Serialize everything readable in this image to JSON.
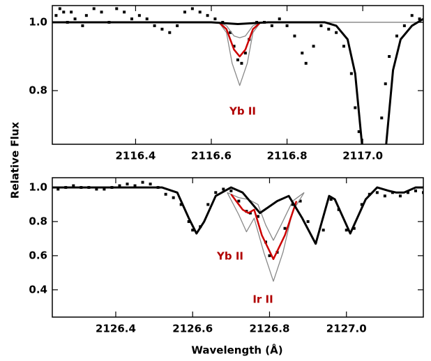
{
  "chart_data": [
    {
      "type": "line",
      "ylabel": "Relative Flux",
      "xlim": [
        2116.18,
        2117.16
      ],
      "ylim": [
        0.643,
        1.049
      ],
      "xticks": [
        2116.4,
        2116.6,
        2116.8,
        {
          "value": 2117,
          "label": "2117.0"
        }
      ],
      "yticks": [
        0.8,
        {
          "value": 1,
          "label": "1.0"
        }
      ],
      "annotations": [
        {
          "text": "Yb II",
          "color": "#b00000"
        }
      ],
      "series": [
        {
          "kind": "points",
          "color": "#000000",
          "x": [
            2116.19,
            2116.2,
            2116.21,
            2116.22,
            2116.23,
            2116.24,
            2116.26,
            2116.27,
            2116.29,
            2116.31,
            2116.33,
            2116.35,
            2116.37,
            2116.39,
            2116.41,
            2116.43,
            2116.45,
            2116.47,
            2116.49,
            2116.51,
            2116.53,
            2116.55,
            2116.57,
            2116.59,
            2116.61,
            2116.63,
            2116.65,
            2116.66,
            2116.67,
            2116.68,
            2116.69,
            2116.7,
            2116.72,
            2116.74,
            2116.76,
            2116.78,
            2116.8,
            2116.82,
            2116.84,
            2116.85,
            2116.87,
            2116.89,
            2116.91,
            2116.93,
            2116.95,
            2116.97,
            2116.98,
            2116.99,
            2117.05,
            2117.06,
            2117.07,
            2117.09,
            2117.11,
            2117.13,
            2117.15
          ],
          "values": [
            1.02,
            1.04,
            1.03,
            1.0,
            1.03,
            1.01,
            0.99,
            1.02,
            1.04,
            1.03,
            1.0,
            1.04,
            1.03,
            1.01,
            1.02,
            1.01,
            0.99,
            0.98,
            0.97,
            0.99,
            1.03,
            1.04,
            1.03,
            1.02,
            1.01,
            1.0,
            0.97,
            0.93,
            0.89,
            0.88,
            0.91,
            0.95,
            1.0,
            1.0,
            0.99,
            1.01,
            0.99,
            0.96,
            0.91,
            0.88,
            0.93,
            0.99,
            0.98,
            0.97,
            0.93,
            0.85,
            0.75,
            0.68,
            0.72,
            0.82,
            0.9,
            0.96,
            0.99,
            1.02,
            1.01
          ]
        },
        {
          "kind": "line",
          "color": "#888888",
          "width": 1.3,
          "x": [
            2116.18,
            2116.62,
            2116.64,
            2116.66,
            2116.675,
            2116.69,
            2116.71,
            2116.73,
            2117.16
          ],
          "values": [
            1.0,
            1.0,
            0.99,
            0.96,
            0.955,
            0.96,
            0.99,
            1.0,
            1.0
          ]
        },
        {
          "kind": "line",
          "color": "#888888",
          "width": 1.3,
          "x": [
            2116.18,
            2116.62,
            2116.64,
            2116.655,
            2116.675,
            2116.695,
            2116.71,
            2116.73,
            2117.16
          ],
          "values": [
            1.0,
            1.0,
            0.97,
            0.88,
            0.815,
            0.88,
            0.97,
            1.0,
            1.0
          ]
        },
        {
          "kind": "line",
          "color": "#cc0000",
          "width": 2.5,
          "x": [
            2116.62,
            2116.64,
            2116.66,
            2116.675,
            2116.69,
            2116.71,
            2116.73
          ],
          "values": [
            1.0,
            0.98,
            0.92,
            0.9,
            0.92,
            0.98,
            1.0
          ]
        },
        {
          "kind": "line",
          "color": "#000000",
          "width": 3,
          "x": [
            2116.18,
            2116.4,
            2116.6,
            2116.67,
            2116.75,
            2116.9,
            2116.93,
            2116.96,
            2116.98,
            2117.0,
            2117.06,
            2117.08,
            2117.1,
            2117.13,
            2117.16
          ],
          "values": [
            1.0,
            1.0,
            1.0,
            0.995,
            1.0,
            1.0,
            0.99,
            0.95,
            0.85,
            0.62,
            0.62,
            0.86,
            0.95,
            0.99,
            1.01
          ]
        }
      ]
    },
    {
      "type": "line",
      "xlabel": "Wavelength (Å)",
      "xlim": [
        2126.235,
        2127.2
      ],
      "ylim": [
        0.24,
        1.057
      ],
      "xticks": [
        2126.4,
        2126.6,
        2126.8,
        {
          "value": 2127,
          "label": "2127.0"
        }
      ],
      "yticks": [
        0.4,
        0.6,
        0.8,
        {
          "value": 1,
          "label": "1.0"
        }
      ],
      "annotations": [
        {
          "text": "Yb II",
          "color": "#b00000"
        },
        {
          "text": "Ir II",
          "color": "#b00000"
        }
      ],
      "series": [
        {
          "kind": "points",
          "color": "#000000",
          "x": [
            2126.25,
            2126.27,
            2126.29,
            2126.31,
            2126.33,
            2126.35,
            2126.37,
            2126.39,
            2126.41,
            2126.43,
            2126.45,
            2126.47,
            2126.49,
            2126.51,
            2126.53,
            2126.55,
            2126.57,
            2126.59,
            2126.6,
            2126.62,
            2126.64,
            2126.66,
            2126.68,
            2126.7,
            2126.72,
            2126.74,
            2126.75,
            2126.77,
            2126.79,
            2126.8,
            2126.82,
            2126.84,
            2126.86,
            2126.88,
            2126.9,
            2126.92,
            2126.94,
            2126.96,
            2126.98,
            2127.0,
            2127.02,
            2127.04,
            2127.06,
            2127.08,
            2127.1,
            2127.12,
            2127.14,
            2127.16,
            2127.18,
            2127.2
          ],
          "values": [
            0.99,
            1.0,
            1.01,
            1.0,
            1.0,
            0.99,
            0.99,
            1.0,
            1.01,
            1.02,
            1.01,
            1.03,
            1.02,
            1.0,
            0.96,
            0.94,
            0.9,
            0.8,
            0.75,
            0.77,
            0.9,
            0.97,
            0.99,
            0.98,
            0.92,
            0.86,
            0.85,
            0.83,
            0.68,
            0.6,
            0.62,
            0.76,
            0.9,
            0.92,
            0.8,
            0.68,
            0.75,
            0.93,
            0.87,
            0.75,
            0.76,
            0.9,
            0.96,
            0.97,
            0.95,
            0.97,
            0.95,
            0.97,
            0.98,
            0.97
          ]
        },
        {
          "kind": "line",
          "color": "#888888",
          "width": 1.3,
          "x": [
            2126.69,
            2126.72,
            2126.745,
            2126.77,
            2126.79,
            2126.81,
            2126.83,
            2126.86,
            2126.89
          ],
          "values": [
            0.97,
            0.94,
            0.93,
            0.9,
            0.78,
            0.69,
            0.78,
            0.92,
            0.97
          ]
        },
        {
          "kind": "line",
          "color": "#888888",
          "width": 1.3,
          "x": [
            2126.69,
            2126.72,
            2126.74,
            2126.76,
            2126.785,
            2126.81,
            2126.835,
            2126.86,
            2126.89
          ],
          "values": [
            0.97,
            0.84,
            0.74,
            0.82,
            0.62,
            0.45,
            0.62,
            0.86,
            0.97
          ]
        },
        {
          "kind": "line",
          "color": "#cc0000",
          "width": 2.5,
          "x": [
            2126.7,
            2126.73,
            2126.745,
            2126.76,
            2126.78,
            2126.81,
            2126.84,
            2126.87
          ],
          "values": [
            0.96,
            0.87,
            0.85,
            0.87,
            0.72,
            0.58,
            0.72,
            0.92
          ]
        },
        {
          "kind": "line",
          "color": "#000000",
          "width": 3,
          "x": [
            2126.235,
            2126.52,
            2126.56,
            2126.59,
            2126.61,
            2126.63,
            2126.66,
            2126.7,
            2126.73,
            2126.775,
            2126.82,
            2126.85,
            2126.885,
            2126.92,
            2126.955,
            2126.97,
            2127.01,
            2127.05,
            2127.08,
            2127.11,
            2127.13,
            2127.15,
            2127.18,
            2127.2
          ],
          "values": [
            1.0,
            1.0,
            0.97,
            0.82,
            0.73,
            0.8,
            0.95,
            1.0,
            0.97,
            0.85,
            0.92,
            0.95,
            0.82,
            0.67,
            0.95,
            0.93,
            0.73,
            0.93,
            1.0,
            0.98,
            0.97,
            0.97,
            1.0,
            1.0
          ]
        }
      ]
    }
  ]
}
